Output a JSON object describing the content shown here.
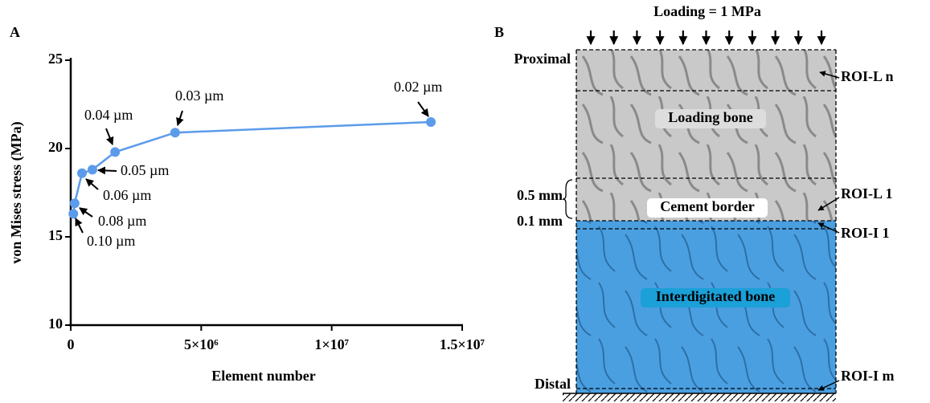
{
  "chart_data": {
    "type": "line",
    "panel_label": "A",
    "xlabel": "Element number",
    "ylabel": "von Mises stress (MPa)",
    "x": [
      100000,
      150000,
      430000,
      830000,
      1700000,
      4000000,
      13800000
    ],
    "series": [
      {
        "color": "#5b9bea",
        "values": [
          16.3,
          16.9,
          18.6,
          18.8,
          19.8,
          20.9,
          21.5
        ]
      }
    ],
    "annotations": [
      "0.10 µm",
      "0.08 µm",
      "0.06 µm",
      "0.05 µm",
      "0.04 µm",
      "0.03 µm",
      "0.02 µm"
    ],
    "xlim": [
      0,
      15000000
    ],
    "ylim": [
      10,
      25
    ],
    "xticks": [
      0,
      {
        "value": 5000000,
        "label": "5×10⁶"
      },
      {
        "value": 10000000,
        "label": "1×10⁷"
      },
      {
        "value": 15000000,
        "label": "1.5×10⁷"
      }
    ],
    "yticks": [
      10,
      15,
      20,
      25
    ]
  },
  "panel_b": {
    "panel_label": "B",
    "loading": "Loading = 1 MPa",
    "proximal": "Proximal",
    "distal": "Distal",
    "roi_ln": "ROI-L n",
    "roi_l1": "ROI-L 1",
    "roi_i1": "ROI-I 1",
    "roi_im": "ROI-I m",
    "dim_05": "0.5 mm",
    "dim_01": "0.1 mm",
    "loading_bone": "Loading  bone",
    "cement_border": "Cement border",
    "interdigitated_bone": "Interdigitated  bone"
  }
}
